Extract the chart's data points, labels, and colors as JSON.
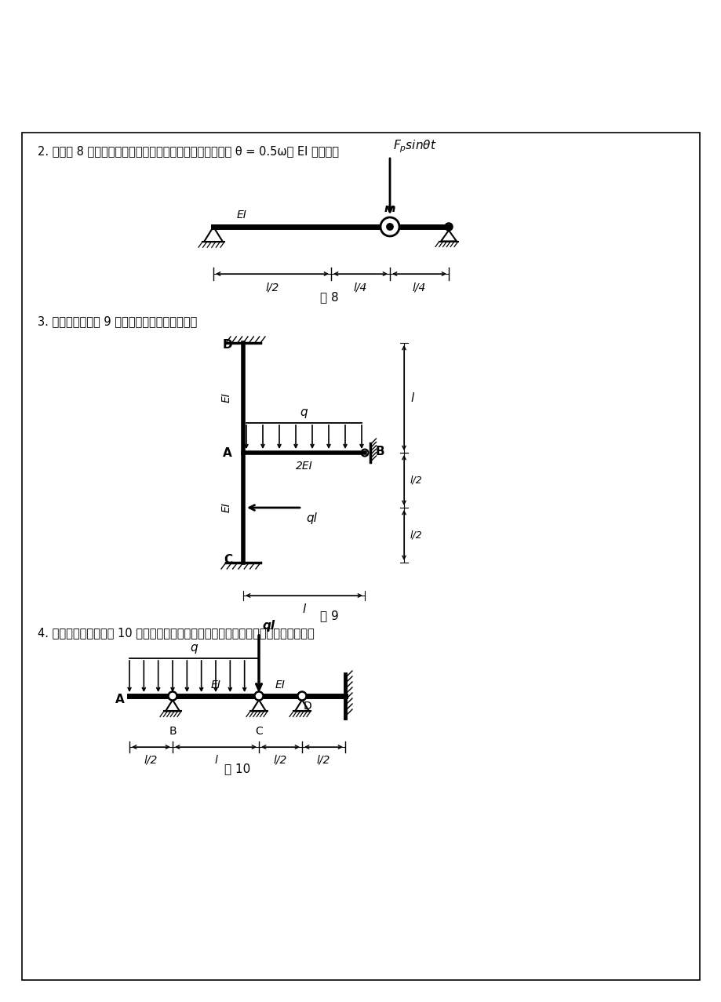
{
  "page_bg": "#ffffff",
  "title2": "2. 计算图 8 所示体系在简谐荷载作用下的最大动位移。其中 θ = 0.5ω， EI 为常数。",
  "title3": "3. 用位移法计算图 9 所示构造，并绘出弯矩图。",
  "title4": "4. 用力矩分派法计算图 10 所示持续梁，并绘梁的弯矩图。（注意：分派、传递一轮）",
  "fig8_label": "图 8",
  "fig9_label": "图 9",
  "fig10_label": "图 10"
}
